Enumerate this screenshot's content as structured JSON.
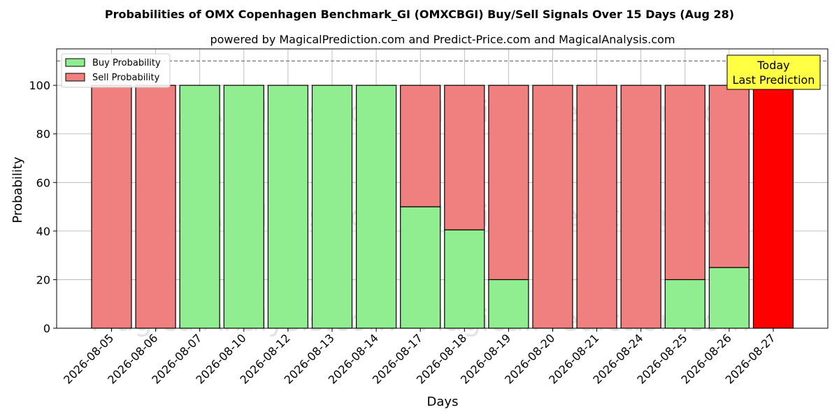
{
  "chart_data": {
    "type": "bar",
    "stacked": true,
    "title": "Probabilities of OMX Copenhagen Benchmark_GI (OMXCBGI) Buy/Sell Signals Over 15 Days (Aug 28)",
    "subtitle": "powered by MagicalPrediction.com and Predict-Price.com and MagicalAnalysis.com",
    "xlabel": "Days",
    "ylabel": "Probability",
    "ylim": [
      0,
      115
    ],
    "yticks": [
      0,
      20,
      40,
      60,
      80,
      100
    ],
    "reference_line": 110,
    "grid": true,
    "legend_position": "top-left",
    "categories": [
      "2026-08-05",
      "2026-08-06",
      "2026-08-07",
      "2026-08-10",
      "2026-08-12",
      "2026-08-13",
      "2026-08-14",
      "2026-08-17",
      "2026-08-18",
      "2026-08-19",
      "2026-08-20",
      "2026-08-21",
      "2026-08-24",
      "2026-08-25",
      "2026-08-26",
      "2026-08-27"
    ],
    "series": [
      {
        "name": "Buy Probability",
        "color": "#90ee90",
        "values": [
          0,
          0,
          100,
          100,
          100,
          100,
          100,
          50,
          40.5,
          20,
          0,
          0,
          0,
          20,
          25,
          0
        ]
      },
      {
        "name": "Sell Probability",
        "color": "#f08080",
        "values": [
          100,
          100,
          0,
          0,
          0,
          0,
          0,
          50,
          59.5,
          80,
          100,
          100,
          100,
          80,
          75,
          100
        ]
      }
    ],
    "highlight": {
      "index": 15,
      "color": "#ff0000"
    },
    "annotation": {
      "lines": [
        "Today",
        "Last Prediction"
      ],
      "background": "#ffff44"
    },
    "watermarks": [
      "MagicalAnalysis.com",
      "MagicalPrediction.com"
    ]
  }
}
